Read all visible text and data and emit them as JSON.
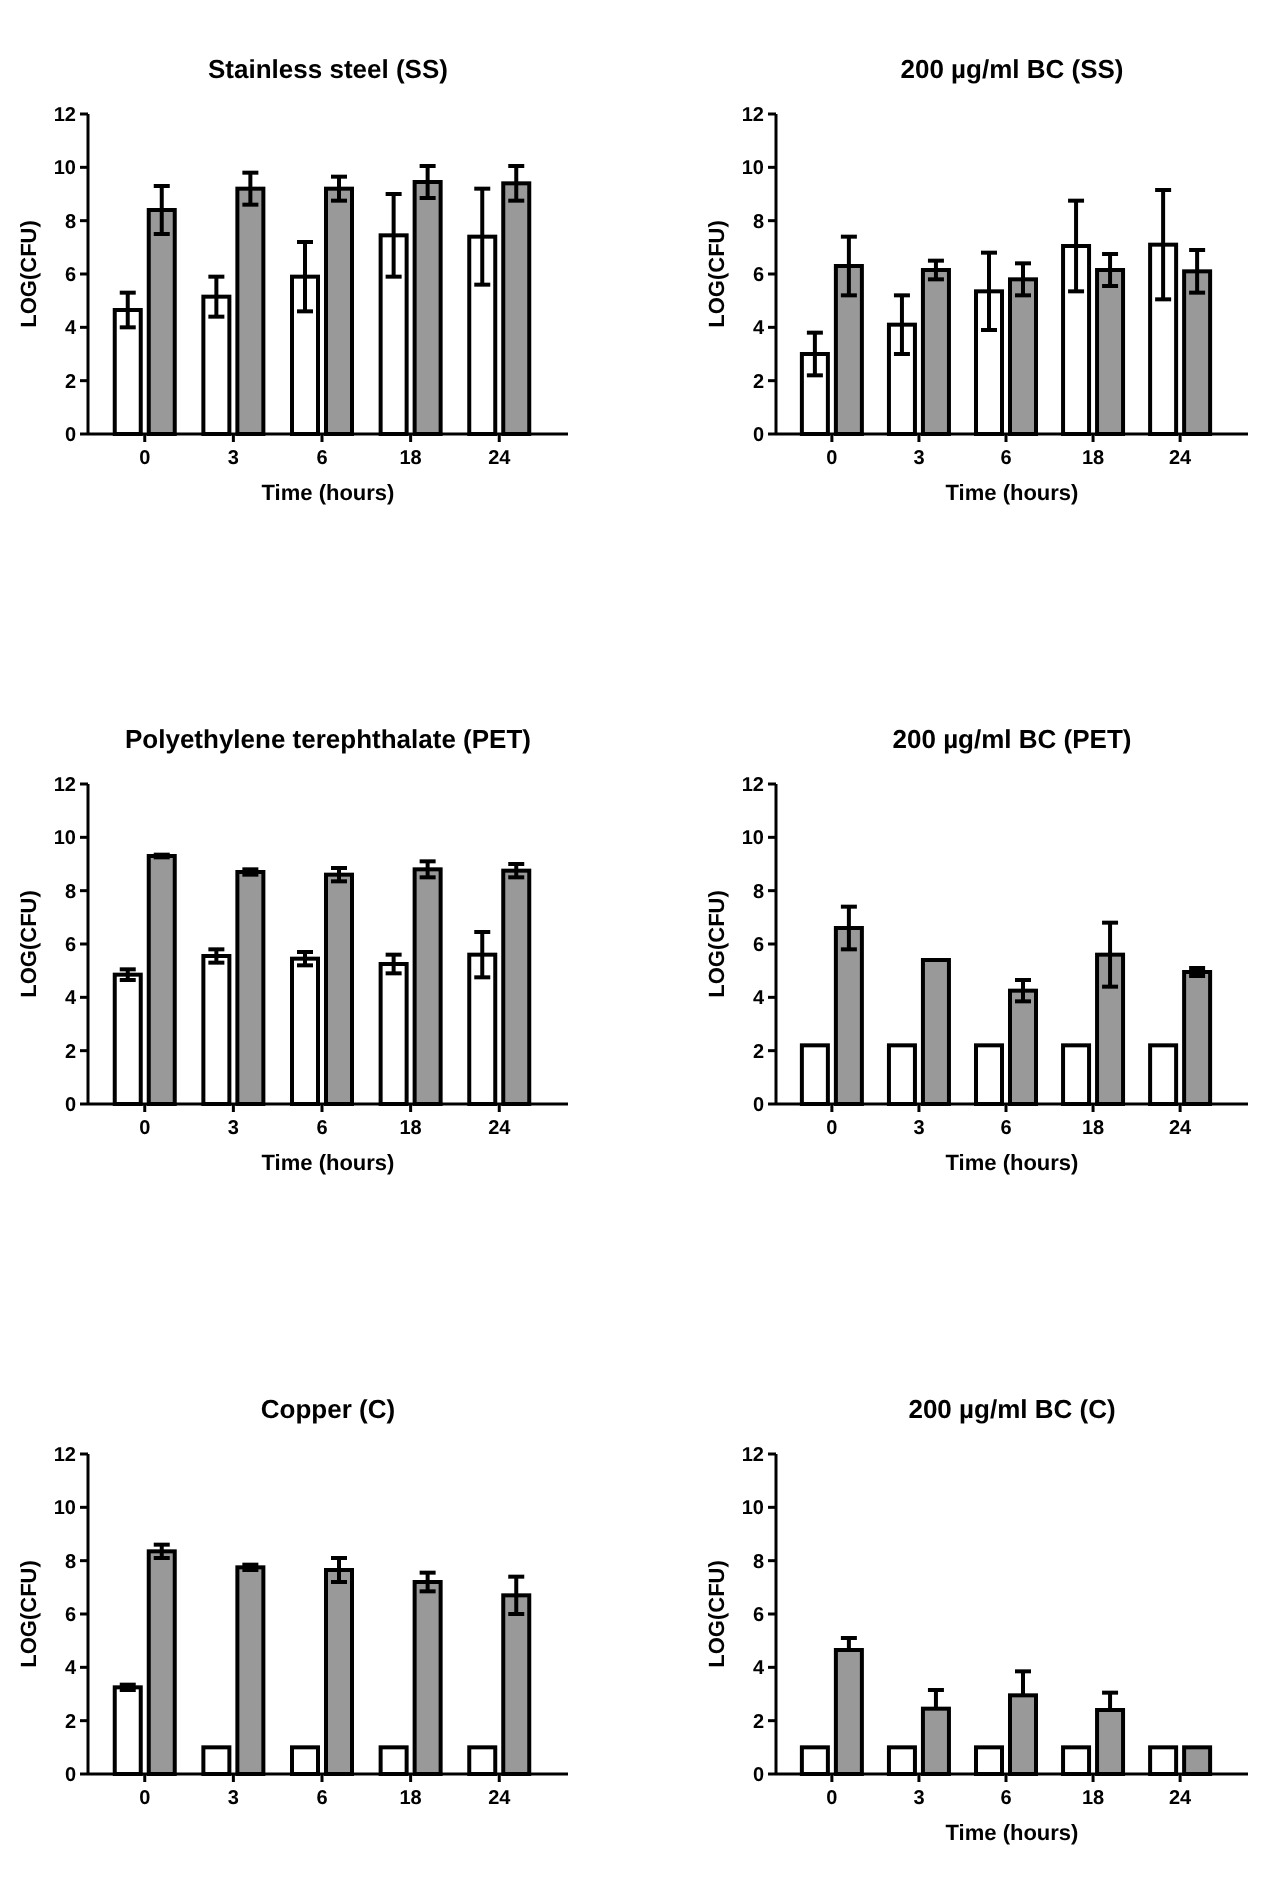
{
  "chart_data": [
    {
      "type": "bar",
      "title": "Stainless steel (SS)",
      "xlabel": "Time (hours)",
      "ylabel": "LOG(CFU)",
      "categories": [
        "0",
        "3",
        "6",
        "18",
        "24"
      ],
      "ylim": [
        0,
        12
      ],
      "yticks": [
        0,
        2,
        4,
        6,
        8,
        10,
        12
      ],
      "series": [
        {
          "color": "#ffffff",
          "values": [
            4.65,
            5.15,
            5.9,
            7.45,
            7.4
          ],
          "errors": [
            0.65,
            0.75,
            1.3,
            1.55,
            1.8
          ]
        },
        {
          "color": "#999999",
          "values": [
            8.4,
            9.2,
            9.2,
            9.45,
            9.4
          ],
          "errors": [
            0.9,
            0.6,
            0.45,
            0.6,
            0.65
          ]
        }
      ]
    },
    {
      "type": "bar",
      "title": "200 µg/ml BC (SS)",
      "xlabel": "Time (hours)",
      "ylabel": "LOG(CFU)",
      "categories": [
        "0",
        "3",
        "6",
        "18",
        "24"
      ],
      "ylim": [
        0,
        12
      ],
      "yticks": [
        0,
        2,
        4,
        6,
        8,
        10,
        12
      ],
      "series": [
        {
          "color": "#ffffff",
          "values": [
            3.0,
            4.1,
            5.35,
            7.05,
            7.1
          ],
          "errors": [
            0.8,
            1.1,
            1.45,
            1.7,
            2.05
          ]
        },
        {
          "color": "#999999",
          "values": [
            6.3,
            6.15,
            5.8,
            6.15,
            6.1
          ],
          "errors": [
            1.1,
            0.35,
            0.6,
            0.6,
            0.8
          ]
        }
      ]
    },
    {
      "type": "bar",
      "title": "Polyethylene terephthalate (PET)",
      "xlabel": "Time (hours)",
      "ylabel": "LOG(CFU)",
      "categories": [
        "0",
        "3",
        "6",
        "18",
        "24"
      ],
      "ylim": [
        0,
        12
      ],
      "yticks": [
        0,
        2,
        4,
        6,
        8,
        10,
        12
      ],
      "series": [
        {
          "color": "#ffffff",
          "values": [
            4.85,
            5.55,
            5.45,
            5.25,
            5.6
          ],
          "errors": [
            0.2,
            0.25,
            0.25,
            0.35,
            0.85
          ]
        },
        {
          "color": "#999999",
          "values": [
            9.3,
            8.7,
            8.6,
            8.8,
            8.75
          ],
          "errors": [
            0.05,
            0.1,
            0.25,
            0.3,
            0.25
          ]
        }
      ]
    },
    {
      "type": "bar",
      "title": "200 µg/ml BC (PET)",
      "xlabel": "Time (hours)",
      "ylabel": "LOG(CFU)",
      "categories": [
        "0",
        "3",
        "6",
        "18",
        "24"
      ],
      "ylim": [
        0,
        12
      ],
      "yticks": [
        0,
        2,
        4,
        6,
        8,
        10,
        12
      ],
      "series": [
        {
          "color": "#ffffff",
          "values": [
            2.2,
            2.2,
            2.2,
            2.2,
            2.2
          ]
        },
        {
          "color": "#999999",
          "values": [
            6.6,
            5.4,
            4.25,
            5.6,
            4.95
          ],
          "errors": [
            0.8,
            null,
            0.4,
            1.2,
            0.15
          ]
        }
      ]
    },
    {
      "type": "bar",
      "title": "Copper (C)",
      "ylabel": "LOG(CFU)",
      "categories": [
        "0",
        "3",
        "6",
        "18",
        "24"
      ],
      "ylim": [
        0,
        12
      ],
      "yticks": [
        0,
        2,
        4,
        6,
        8,
        10,
        12
      ],
      "series": [
        {
          "color": "#ffffff",
          "values": [
            3.25,
            1,
            1,
            1,
            1
          ],
          "errors": [
            0.1,
            null,
            null,
            null,
            null
          ]
        },
        {
          "color": "#999999",
          "values": [
            8.35,
            7.75,
            7.65,
            7.2,
            6.7
          ],
          "errors": [
            0.25,
            0.1,
            0.45,
            0.35,
            0.7
          ]
        }
      ]
    },
    {
      "type": "bar",
      "title": "200 µg/ml BC (C)",
      "xlabel": "Time (hours)",
      "ylabel": "LOG(CFU)",
      "categories": [
        "0",
        "3",
        "6",
        "18",
        "24"
      ],
      "ylim": [
        0,
        12
      ],
      "yticks": [
        0,
        2,
        4,
        6,
        8,
        10,
        12
      ],
      "series": [
        {
          "color": "#ffffff",
          "values": [
            1,
            1,
            1,
            1,
            1
          ]
        },
        {
          "color": "#999999",
          "values": [
            4.65,
            2.45,
            2.95,
            2.4,
            1
          ],
          "errors": [
            [
              4.65,
              5.1
            ],
            [
              2.45,
              3.15
            ],
            [
              2.95,
              3.85
            ],
            [
              2.4,
              3.05
            ],
            null
          ]
        }
      ]
    }
  ]
}
